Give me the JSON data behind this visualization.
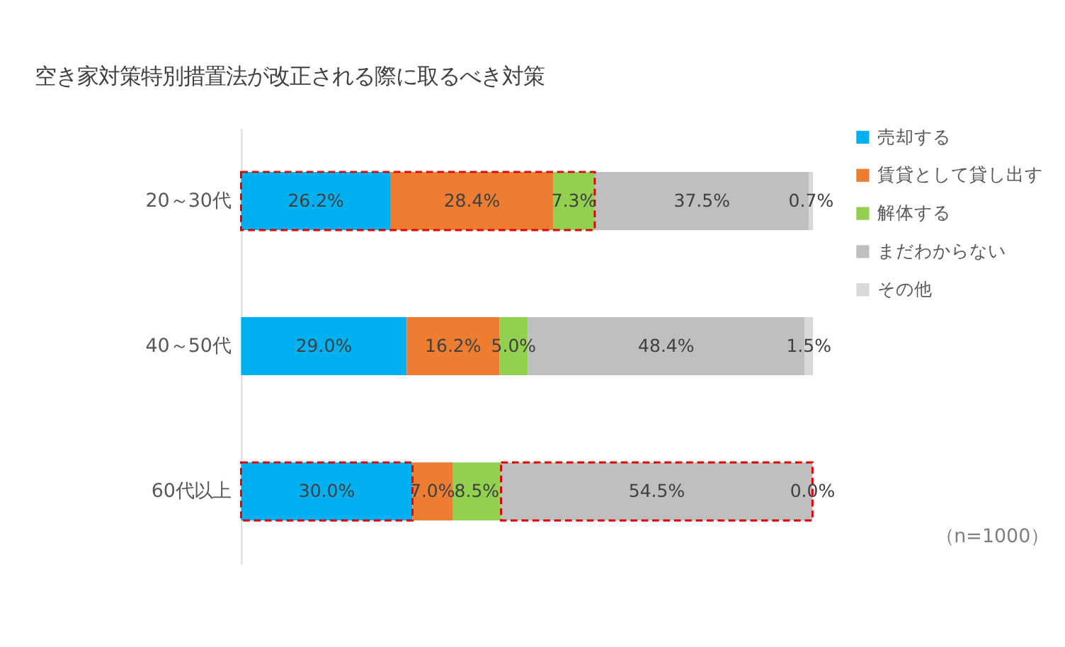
{
  "chart_data": {
    "type": "bar",
    "orientation": "horizontal",
    "stacked": true,
    "title": "空き家対策特別措置法が改正される際に取るべき対策",
    "categories": [
      "20～30代",
      "40～50代",
      "60代以上"
    ],
    "series": [
      {
        "name": "売却する",
        "color": "#00b0f0",
        "values": [
          26.2,
          29.0,
          30.0
        ],
        "value_labels": [
          "26.2%",
          "29.0%",
          "30.0%"
        ]
      },
      {
        "name": "賃貸として貸し出す",
        "color": "#ed7d31",
        "values": [
          28.4,
          16.2,
          7.0
        ],
        "value_labels": [
          "28.4%",
          "16.2%",
          "7.0%"
        ]
      },
      {
        "name": "解体する",
        "color": "#92d050",
        "values": [
          7.3,
          5.0,
          8.5
        ],
        "value_labels": [
          "7.3%",
          "5.0%",
          "8.5%"
        ]
      },
      {
        "name": "まだわからない",
        "color": "#bfbfbf",
        "values": [
          37.5,
          48.4,
          54.5
        ],
        "value_labels": [
          "37.5%",
          "48.4%",
          "54.5%"
        ]
      },
      {
        "name": "その他",
        "color": "#d9d9d9",
        "values": [
          0.7,
          1.5,
          0.0
        ],
        "value_labels": [
          "0.7%",
          "1.5%",
          "0.0%"
        ]
      }
    ],
    "annotations": [
      "（n=1000）"
    ],
    "legend": "right",
    "grid": false,
    "tick_labels": "y"
  }
}
